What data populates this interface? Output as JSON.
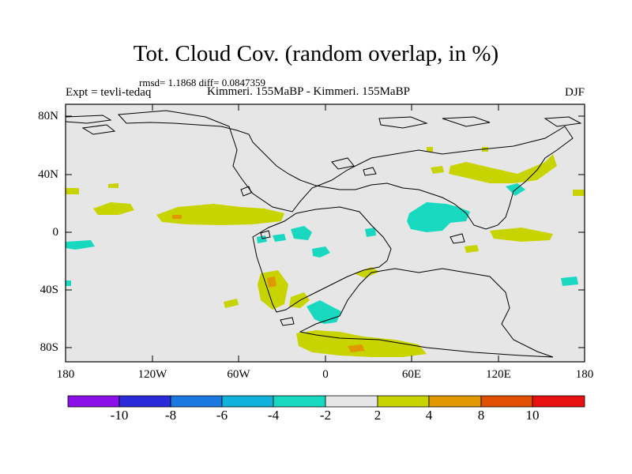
{
  "header": {
    "title": "Tot. Cloud Cov. (random overlap, in %)",
    "stats": "rmsd= 1.1868 diff= 0.0847359",
    "experiment": "Expt = tevli-tedaq",
    "experiment_names": "Kimmeri. 155MaBP - Kimmeri. 155MaBP",
    "season": "DJF"
  },
  "map": {
    "background_color": "#e6e6e6",
    "lat_ticks": [
      "80N",
      "40N",
      "0",
      "40S",
      "80S"
    ],
    "lon_ticks": [
      "180",
      "120W",
      "60W",
      "0",
      "60E",
      "120E",
      "180"
    ]
  },
  "colorbar": {
    "labels": [
      "-10",
      "-8",
      "-6",
      "-4",
      "-2",
      "2",
      "4",
      "8",
      "10"
    ],
    "colors": [
      "#8b10e8",
      "#2a2ad8",
      "#1a78e0",
      "#10b2dc",
      "#18d8c0",
      "#e6e6e6",
      "#c8d400",
      "#e09800",
      "#e05000",
      "#e81010"
    ]
  }
}
